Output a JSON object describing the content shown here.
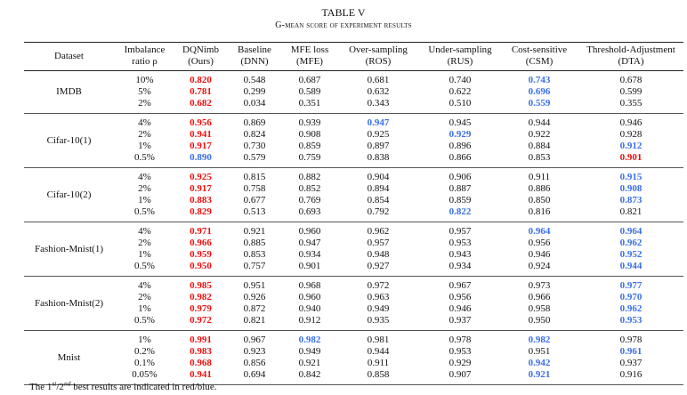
{
  "caption": {
    "table_number": "TABLE V",
    "title": "G-mean score of experiment results"
  },
  "columns": [
    {
      "line1": "Dataset",
      "line2": ""
    },
    {
      "line1": "Imbalance",
      "line2": "ratio ρ"
    },
    {
      "line1": "DQNimb",
      "line2": "(Ours)"
    },
    {
      "line1": "Baseline",
      "line2": "(DNN)"
    },
    {
      "line1": "MFE loss",
      "line2": "(MFE)"
    },
    {
      "line1": "Over-sampling",
      "line2": "(ROS)"
    },
    {
      "line1": "Under-sampling",
      "line2": "(RUS)"
    },
    {
      "line1": "Cost-sensitive",
      "line2": "(CSM)"
    },
    {
      "line1": "Threshold-Adjustment",
      "line2": "(DTA)"
    }
  ],
  "highlight_colors": {
    "best": "#ee1111",
    "second": "#3a6fe8"
  },
  "groups": [
    {
      "dataset": "IMDB",
      "rows": [
        {
          "ratio": "10%",
          "values": [
            "0.820",
            "0.548",
            "0.687",
            "0.681",
            "0.740",
            "0.743",
            "0.678"
          ],
          "marks": [
            "r",
            "",
            "",
            "",
            "",
            "b",
            ""
          ]
        },
        {
          "ratio": "5%",
          "values": [
            "0.781",
            "0.299",
            "0.589",
            "0.632",
            "0.622",
            "0.696",
            "0.599"
          ],
          "marks": [
            "r",
            "",
            "",
            "",
            "",
            "b",
            ""
          ]
        },
        {
          "ratio": "2%",
          "values": [
            "0.682",
            "0.034",
            "0.351",
            "0.343",
            "0.510",
            "0.559",
            "0.355"
          ],
          "marks": [
            "r",
            "",
            "",
            "",
            "",
            "b",
            ""
          ]
        }
      ]
    },
    {
      "dataset": "Cifar-10(1)",
      "rows": [
        {
          "ratio": "4%",
          "values": [
            "0.956",
            "0.869",
            "0.939",
            "0.947",
            "0.945",
            "0.944",
            "0.946"
          ],
          "marks": [
            "r",
            "",
            "",
            "b",
            "",
            "",
            ""
          ]
        },
        {
          "ratio": "2%",
          "values": [
            "0.941",
            "0.824",
            "0.908",
            "0.925",
            "0.929",
            "0.922",
            "0.928"
          ],
          "marks": [
            "r",
            "",
            "",
            "",
            "b",
            "",
            ""
          ]
        },
        {
          "ratio": "1%",
          "values": [
            "0.917",
            "0.730",
            "0.859",
            "0.897",
            "0.896",
            "0.884",
            "0.912"
          ],
          "marks": [
            "r",
            "",
            "",
            "",
            "",
            "",
            "b"
          ]
        },
        {
          "ratio": "0.5%",
          "values": [
            "0.890",
            "0.579",
            "0.759",
            "0.838",
            "0.866",
            "0.853",
            "0.901"
          ],
          "marks": [
            "b",
            "",
            "",
            "",
            "",
            "",
            "r"
          ]
        }
      ]
    },
    {
      "dataset": "Cifar-10(2)",
      "rows": [
        {
          "ratio": "4%",
          "values": [
            "0.925",
            "0.815",
            "0.882",
            "0.904",
            "0.906",
            "0.911",
            "0.915"
          ],
          "marks": [
            "r",
            "",
            "",
            "",
            "",
            "",
            "b"
          ]
        },
        {
          "ratio": "2%",
          "values": [
            "0.917",
            "0.758",
            "0.852",
            "0.894",
            "0.887",
            "0.886",
            "0.908"
          ],
          "marks": [
            "r",
            "",
            "",
            "",
            "",
            "",
            "b"
          ]
        },
        {
          "ratio": "1%",
          "values": [
            "0.883",
            "0.677",
            "0.769",
            "0.854",
            "0.859",
            "0.850",
            "0.873"
          ],
          "marks": [
            "r",
            "",
            "",
            "",
            "",
            "",
            "b"
          ]
        },
        {
          "ratio": "0.5%",
          "values": [
            "0.829",
            "0.513",
            "0.693",
            "0.792",
            "0.822",
            "0.816",
            "0.821"
          ],
          "marks": [
            "r",
            "",
            "",
            "",
            "b",
            "",
            ""
          ]
        }
      ]
    },
    {
      "dataset": "Fashion-Mnist(1)",
      "rows": [
        {
          "ratio": "4%",
          "values": [
            "0.971",
            "0.921",
            "0.960",
            "0.962",
            "0.957",
            "0.964",
            "0.964"
          ],
          "marks": [
            "r",
            "",
            "",
            "",
            "",
            "b",
            "b"
          ]
        },
        {
          "ratio": "2%",
          "values": [
            "0.966",
            "0.885",
            "0.947",
            "0.957",
            "0.953",
            "0.956",
            "0.962"
          ],
          "marks": [
            "r",
            "",
            "",
            "",
            "",
            "",
            "b"
          ]
        },
        {
          "ratio": "1%",
          "values": [
            "0.959",
            "0.853",
            "0.934",
            "0.948",
            "0.943",
            "0.946",
            "0.952"
          ],
          "marks": [
            "r",
            "",
            "",
            "",
            "",
            "",
            "b"
          ]
        },
        {
          "ratio": "0.5%",
          "values": [
            "0.950",
            "0.757",
            "0.901",
            "0.927",
            "0.934",
            "0.924",
            "0.944"
          ],
          "marks": [
            "r",
            "",
            "",
            "",
            "",
            "",
            "b"
          ]
        }
      ]
    },
    {
      "dataset": "Fashion-Mnist(2)",
      "rows": [
        {
          "ratio": "4%",
          "values": [
            "0.985",
            "0.951",
            "0.968",
            "0.972",
            "0.967",
            "0.973",
            "0.977"
          ],
          "marks": [
            "r",
            "",
            "",
            "",
            "",
            "",
            "b"
          ]
        },
        {
          "ratio": "2%",
          "values": [
            "0.982",
            "0.926",
            "0.960",
            "0.963",
            "0.956",
            "0.966",
            "0.970"
          ],
          "marks": [
            "r",
            "",
            "",
            "",
            "",
            "",
            "b"
          ]
        },
        {
          "ratio": "1%",
          "values": [
            "0.979",
            "0.872",
            "0.940",
            "0.949",
            "0.946",
            "0.958",
            "0.962"
          ],
          "marks": [
            "r",
            "",
            "",
            "",
            "",
            "",
            "b"
          ]
        },
        {
          "ratio": "0.5%",
          "values": [
            "0.972",
            "0.821",
            "0.912",
            "0.935",
            "0.937",
            "0.950",
            "0.953"
          ],
          "marks": [
            "r",
            "",
            "",
            "",
            "",
            "",
            "b"
          ]
        }
      ]
    },
    {
      "dataset": "Mnist",
      "rows": [
        {
          "ratio": "1%",
          "values": [
            "0.991",
            "0.967",
            "0.982",
            "0.981",
            "0.978",
            "0.982",
            "0.978"
          ],
          "marks": [
            "r",
            "",
            "b",
            "",
            "",
            "b",
            ""
          ]
        },
        {
          "ratio": "0.2%",
          "values": [
            "0.983",
            "0.923",
            "0.949",
            "0.944",
            "0.953",
            "0.951",
            "0.961"
          ],
          "marks": [
            "r",
            "",
            "",
            "",
            "",
            "",
            "b"
          ]
        },
        {
          "ratio": "0.1%",
          "values": [
            "0.968",
            "0.856",
            "0.921",
            "0.911",
            "0.929",
            "0.942",
            "0.937"
          ],
          "marks": [
            "r",
            "",
            "",
            "",
            "",
            "b",
            ""
          ]
        },
        {
          "ratio": "0.05%",
          "values": [
            "0.941",
            "0.694",
            "0.842",
            "0.858",
            "0.907",
            "0.921",
            "0.916"
          ],
          "marks": [
            "r",
            "",
            "",
            "",
            "",
            "b",
            ""
          ]
        }
      ]
    }
  ],
  "footnote": {
    "prefix": "The 1",
    "sup1": "st",
    "mid": "/2",
    "sup2": "nd",
    "suffix": " best results are indicated in red/blue."
  }
}
